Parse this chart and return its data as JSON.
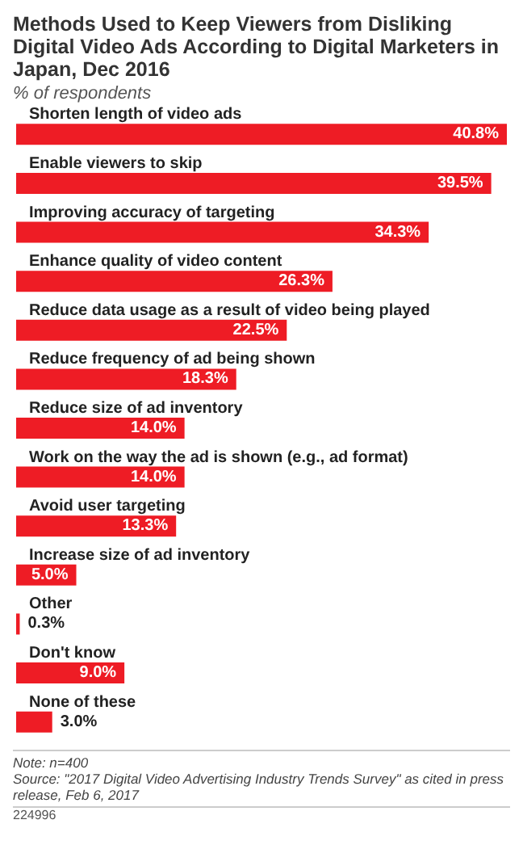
{
  "chart_data": {
    "type": "bar",
    "orientation": "horizontal",
    "title": "Methods Used to Keep Viewers from Disliking Digital Video Ads According to Digital Marketers in Japan, Dec 2016",
    "subtitle": "% of respondents",
    "categories": [
      "Shorten length of video ads",
      "Enable viewers to skip",
      "Improving accuracy of targeting",
      "Enhance quality of video content",
      "Reduce data usage as a result of video being played",
      "Reduce frequency of ad being shown",
      "Reduce size of ad inventory",
      "Work on the way the ad is shown (e.g., ad format)",
      "Avoid user targeting",
      "Increase size of ad inventory",
      "Other",
      "Don't know",
      "None of these"
    ],
    "values": [
      40.8,
      39.5,
      34.3,
      26.3,
      22.5,
      18.3,
      14.0,
      14.0,
      13.3,
      5.0,
      0.3,
      9.0,
      3.0
    ],
    "value_labels": [
      "40.8%",
      "39.5%",
      "34.3%",
      "26.3%",
      "22.5%",
      "18.3%",
      "14.0%",
      "14.0%",
      "13.3%",
      "5.0%",
      "0.3%",
      "9.0%",
      "3.0%"
    ],
    "color": "#ee1c25",
    "annotations": [
      "Note: n=400",
      "Source: \"2017 Digital Video Advertising Industry Trends Survey\" as cited in press release, Feb 6, 2017",
      "224996"
    ]
  }
}
